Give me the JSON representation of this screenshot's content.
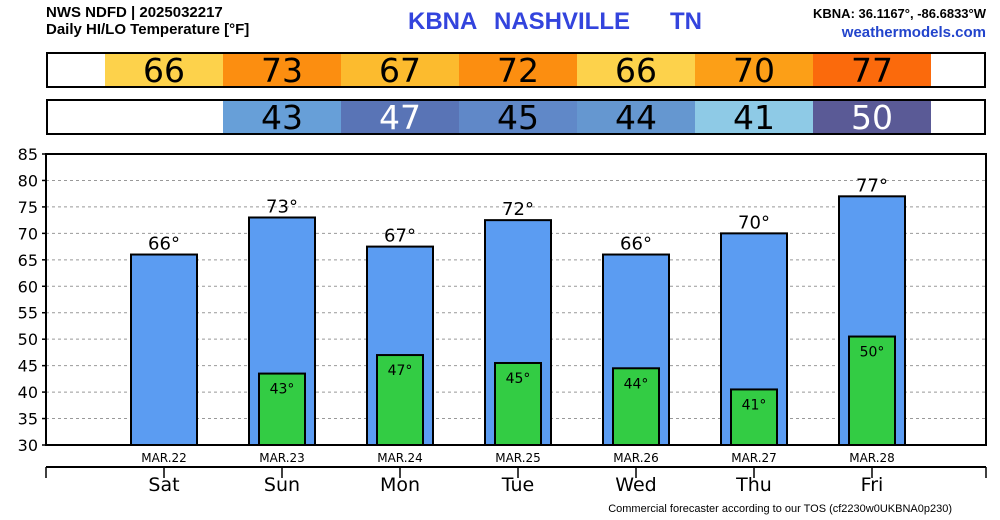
{
  "header": {
    "source_line": "NWS NDFD | 2025032217",
    "subtitle": "Daily HI/LO Temperature [°F]",
    "station_id": "KBNA",
    "station_name": "NASHVILLE",
    "state": "TN",
    "coords": "KBNA: 36.1167°, -86.6833°W",
    "website": "weathermodels.com"
  },
  "footer": "Commercial forecaster according to our TOS (cf2230w0UKBNA0p230)",
  "hi_strip": [
    {
      "text": "66",
      "color": "#fdd24b",
      "text_color": "#000000"
    },
    {
      "text": "73",
      "color": "#fc8e10",
      "text_color": "#000000"
    },
    {
      "text": "67",
      "color": "#fcbb2e",
      "text_color": "#000000"
    },
    {
      "text": "72",
      "color": "#fc8e10",
      "text_color": "#000000"
    },
    {
      "text": "66",
      "color": "#fdd24b",
      "text_color": "#000000"
    },
    {
      "text": "70",
      "color": "#fc9f17",
      "text_color": "#000000"
    },
    {
      "text": "77",
      "color": "#fb6a0c",
      "text_color": "#000000"
    }
  ],
  "lo_strip": [
    {
      "text": "",
      "color": "#ffffff",
      "text_color": "#000000"
    },
    {
      "text": "43",
      "color": "#679fd8",
      "text_color": "#000000"
    },
    {
      "text": "47",
      "color": "#5974b6",
      "text_color": "#ffffff"
    },
    {
      "text": "45",
      "color": "#6088c8",
      "text_color": "#000000"
    },
    {
      "text": "44",
      "color": "#6597d0",
      "text_color": "#000000"
    },
    {
      "text": "41",
      "color": "#8ecae6",
      "text_color": "#000000"
    },
    {
      "text": "50",
      "color": "#5a5a96",
      "text_color": "#ffffff"
    }
  ],
  "chart_data": {
    "type": "bar",
    "categories": [
      "Sat",
      "Sun",
      "Mon",
      "Tue",
      "Wed",
      "Thu",
      "Fri"
    ],
    "dates": [
      "MAR.22",
      "MAR.23",
      "MAR.24",
      "MAR.25",
      "MAR.26",
      "MAR.27",
      "MAR.28"
    ],
    "series": [
      {
        "name": "HI",
        "values": [
          66,
          73,
          67.5,
          72.5,
          66,
          70,
          77
        ],
        "labels": [
          "66°",
          "73°",
          "67°",
          "72°",
          "66°",
          "70°",
          "77°"
        ],
        "color": "#5b9cf2"
      },
      {
        "name": "LO",
        "values": [
          null,
          43.5,
          47,
          45.5,
          44.5,
          40.5,
          50.5
        ],
        "labels": [
          "",
          "43°",
          "47°",
          "45°",
          "44°",
          "41°",
          "50°"
        ],
        "color": "#33cc44"
      }
    ],
    "yticks": [
      30,
      35,
      40,
      45,
      50,
      55,
      60,
      65,
      70,
      75,
      80,
      85
    ],
    "ylim": [
      30,
      85
    ],
    "grid": true
  }
}
